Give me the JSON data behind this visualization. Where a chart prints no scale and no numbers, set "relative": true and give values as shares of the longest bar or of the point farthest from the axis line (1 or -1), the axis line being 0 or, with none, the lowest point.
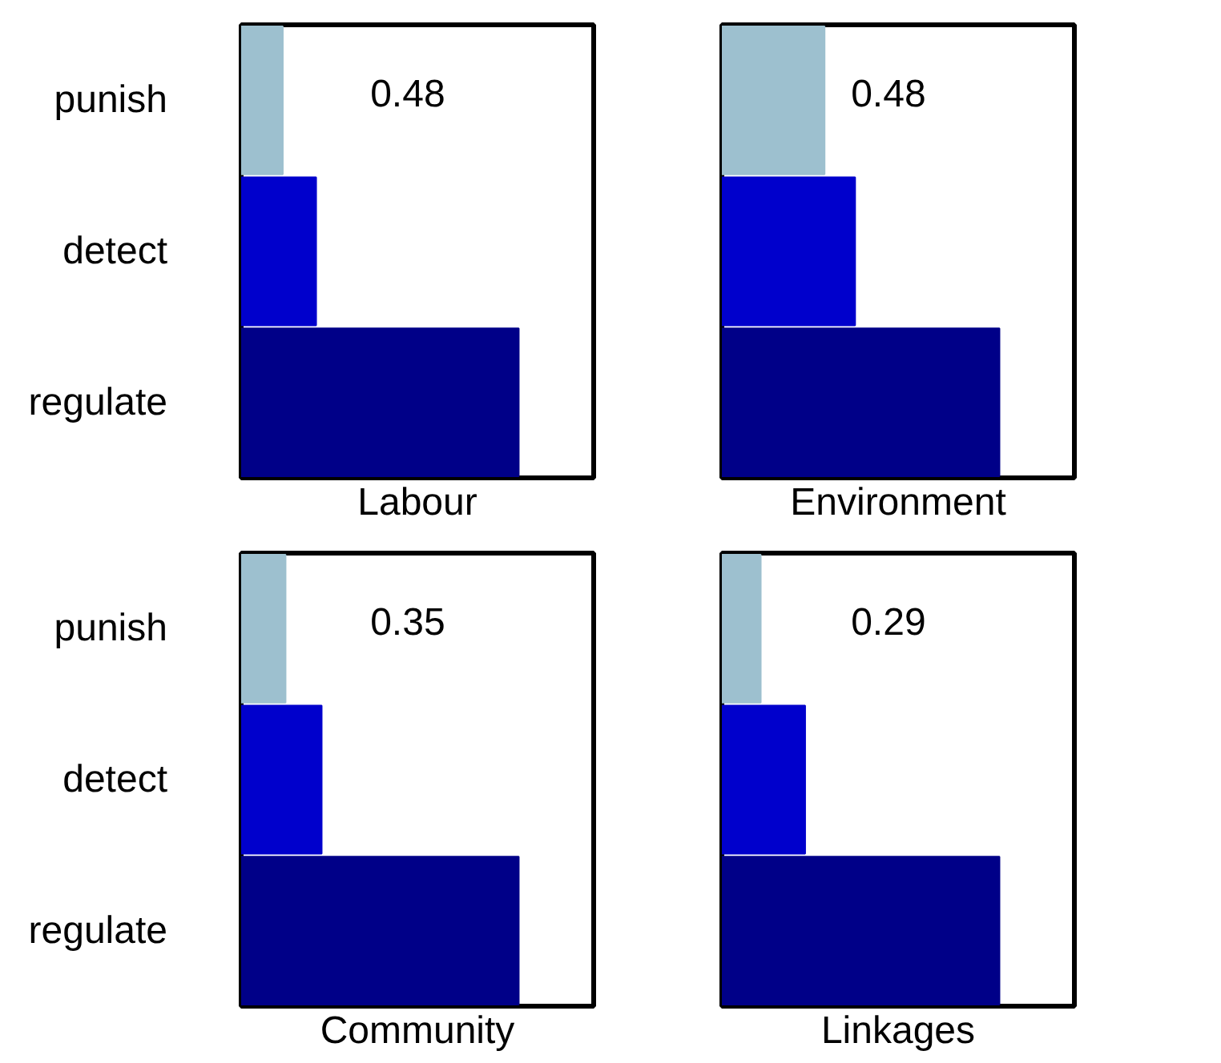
{
  "chart_data": [
    {
      "type": "bar",
      "orientation": "horizontal",
      "relative": true,
      "xlabel": "Labour",
      "categories": [
        "punish",
        "detect",
        "regulate"
      ],
      "values": [
        0.15,
        0.27,
        1
      ],
      "colors": [
        "#9dc0cf",
        "#0000cc",
        "#000088"
      ],
      "annotations": [
        "0.48"
      ],
      "tick_labels": "y",
      "grid": false
    },
    {
      "type": "bar",
      "orientation": "horizontal",
      "relative": true,
      "xlabel": "Environment",
      "categories": [
        null,
        null,
        null
      ],
      "values": [
        0.37,
        0.48,
        1
      ],
      "colors": [
        "#9dc0cf",
        "#0000cc",
        "#000088"
      ],
      "annotations": [
        "0.48"
      ],
      "tick_labels": false,
      "grid": false
    },
    {
      "type": "bar",
      "orientation": "horizontal",
      "relative": true,
      "xlabel": "Community",
      "categories": [
        "punish",
        "detect",
        "regulate"
      ],
      "values": [
        0.16,
        0.29,
        1
      ],
      "colors": [
        "#9dc0cf",
        "#0000cc",
        "#000088"
      ],
      "annotations": [
        "0.35"
      ],
      "tick_labels": "y",
      "grid": false
    },
    {
      "type": "bar",
      "orientation": "horizontal",
      "relative": true,
      "xlabel": "Linkages",
      "categories": [
        null,
        null,
        null
      ],
      "values": [
        0.14,
        0.3,
        1
      ],
      "colors": [
        "#9dc0cf",
        "#0000cc",
        "#000088"
      ],
      "annotations": [
        "0.29"
      ],
      "tick_labels": false,
      "grid": false
    }
  ]
}
